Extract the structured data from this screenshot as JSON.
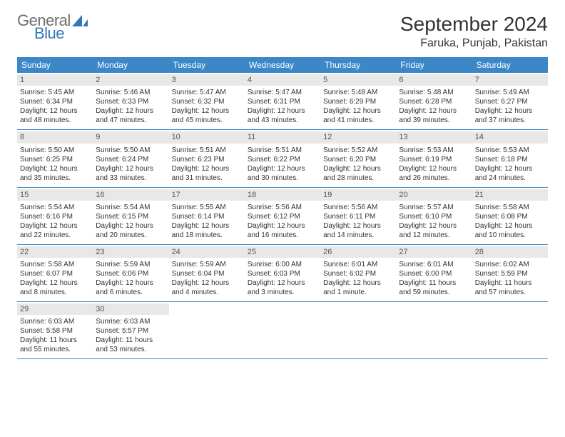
{
  "brand": {
    "word1": "General",
    "word2": "Blue",
    "color_gray": "#6d6d6d",
    "color_blue": "#2f79b9"
  },
  "header": {
    "title": "September 2024",
    "location": "Faruka, Punjab, Pakistan"
  },
  "colors": {
    "header_bar": "#3b87c8",
    "daynum_bg": "#e8e8e8",
    "border": "#3b87c8"
  },
  "weekdays": [
    "Sunday",
    "Monday",
    "Tuesday",
    "Wednesday",
    "Thursday",
    "Friday",
    "Saturday"
  ],
  "weeks": [
    [
      {
        "n": "1",
        "sr": "Sunrise: 5:45 AM",
        "ss": "Sunset: 6:34 PM",
        "d1": "Daylight: 12 hours",
        "d2": "and 48 minutes."
      },
      {
        "n": "2",
        "sr": "Sunrise: 5:46 AM",
        "ss": "Sunset: 6:33 PM",
        "d1": "Daylight: 12 hours",
        "d2": "and 47 minutes."
      },
      {
        "n": "3",
        "sr": "Sunrise: 5:47 AM",
        "ss": "Sunset: 6:32 PM",
        "d1": "Daylight: 12 hours",
        "d2": "and 45 minutes."
      },
      {
        "n": "4",
        "sr": "Sunrise: 5:47 AM",
        "ss": "Sunset: 6:31 PM",
        "d1": "Daylight: 12 hours",
        "d2": "and 43 minutes."
      },
      {
        "n": "5",
        "sr": "Sunrise: 5:48 AM",
        "ss": "Sunset: 6:29 PM",
        "d1": "Daylight: 12 hours",
        "d2": "and 41 minutes."
      },
      {
        "n": "6",
        "sr": "Sunrise: 5:48 AM",
        "ss": "Sunset: 6:28 PM",
        "d1": "Daylight: 12 hours",
        "d2": "and 39 minutes."
      },
      {
        "n": "7",
        "sr": "Sunrise: 5:49 AM",
        "ss": "Sunset: 6:27 PM",
        "d1": "Daylight: 12 hours",
        "d2": "and 37 minutes."
      }
    ],
    [
      {
        "n": "8",
        "sr": "Sunrise: 5:50 AM",
        "ss": "Sunset: 6:25 PM",
        "d1": "Daylight: 12 hours",
        "d2": "and 35 minutes."
      },
      {
        "n": "9",
        "sr": "Sunrise: 5:50 AM",
        "ss": "Sunset: 6:24 PM",
        "d1": "Daylight: 12 hours",
        "d2": "and 33 minutes."
      },
      {
        "n": "10",
        "sr": "Sunrise: 5:51 AM",
        "ss": "Sunset: 6:23 PM",
        "d1": "Daylight: 12 hours",
        "d2": "and 31 minutes."
      },
      {
        "n": "11",
        "sr": "Sunrise: 5:51 AM",
        "ss": "Sunset: 6:22 PM",
        "d1": "Daylight: 12 hours",
        "d2": "and 30 minutes."
      },
      {
        "n": "12",
        "sr": "Sunrise: 5:52 AM",
        "ss": "Sunset: 6:20 PM",
        "d1": "Daylight: 12 hours",
        "d2": "and 28 minutes."
      },
      {
        "n": "13",
        "sr": "Sunrise: 5:53 AM",
        "ss": "Sunset: 6:19 PM",
        "d1": "Daylight: 12 hours",
        "d2": "and 26 minutes."
      },
      {
        "n": "14",
        "sr": "Sunrise: 5:53 AM",
        "ss": "Sunset: 6:18 PM",
        "d1": "Daylight: 12 hours",
        "d2": "and 24 minutes."
      }
    ],
    [
      {
        "n": "15",
        "sr": "Sunrise: 5:54 AM",
        "ss": "Sunset: 6:16 PM",
        "d1": "Daylight: 12 hours",
        "d2": "and 22 minutes."
      },
      {
        "n": "16",
        "sr": "Sunrise: 5:54 AM",
        "ss": "Sunset: 6:15 PM",
        "d1": "Daylight: 12 hours",
        "d2": "and 20 minutes."
      },
      {
        "n": "17",
        "sr": "Sunrise: 5:55 AM",
        "ss": "Sunset: 6:14 PM",
        "d1": "Daylight: 12 hours",
        "d2": "and 18 minutes."
      },
      {
        "n": "18",
        "sr": "Sunrise: 5:56 AM",
        "ss": "Sunset: 6:12 PM",
        "d1": "Daylight: 12 hours",
        "d2": "and 16 minutes."
      },
      {
        "n": "19",
        "sr": "Sunrise: 5:56 AM",
        "ss": "Sunset: 6:11 PM",
        "d1": "Daylight: 12 hours",
        "d2": "and 14 minutes."
      },
      {
        "n": "20",
        "sr": "Sunrise: 5:57 AM",
        "ss": "Sunset: 6:10 PM",
        "d1": "Daylight: 12 hours",
        "d2": "and 12 minutes."
      },
      {
        "n": "21",
        "sr": "Sunrise: 5:58 AM",
        "ss": "Sunset: 6:08 PM",
        "d1": "Daylight: 12 hours",
        "d2": "and 10 minutes."
      }
    ],
    [
      {
        "n": "22",
        "sr": "Sunrise: 5:58 AM",
        "ss": "Sunset: 6:07 PM",
        "d1": "Daylight: 12 hours",
        "d2": "and 8 minutes."
      },
      {
        "n": "23",
        "sr": "Sunrise: 5:59 AM",
        "ss": "Sunset: 6:06 PM",
        "d1": "Daylight: 12 hours",
        "d2": "and 6 minutes."
      },
      {
        "n": "24",
        "sr": "Sunrise: 5:59 AM",
        "ss": "Sunset: 6:04 PM",
        "d1": "Daylight: 12 hours",
        "d2": "and 4 minutes."
      },
      {
        "n": "25",
        "sr": "Sunrise: 6:00 AM",
        "ss": "Sunset: 6:03 PM",
        "d1": "Daylight: 12 hours",
        "d2": "and 3 minutes."
      },
      {
        "n": "26",
        "sr": "Sunrise: 6:01 AM",
        "ss": "Sunset: 6:02 PM",
        "d1": "Daylight: 12 hours",
        "d2": "and 1 minute."
      },
      {
        "n": "27",
        "sr": "Sunrise: 6:01 AM",
        "ss": "Sunset: 6:00 PM",
        "d1": "Daylight: 11 hours",
        "d2": "and 59 minutes."
      },
      {
        "n": "28",
        "sr": "Sunrise: 6:02 AM",
        "ss": "Sunset: 5:59 PM",
        "d1": "Daylight: 11 hours",
        "d2": "and 57 minutes."
      }
    ],
    [
      {
        "n": "29",
        "sr": "Sunrise: 6:03 AM",
        "ss": "Sunset: 5:58 PM",
        "d1": "Daylight: 11 hours",
        "d2": "and 55 minutes."
      },
      {
        "n": "30",
        "sr": "Sunrise: 6:03 AM",
        "ss": "Sunset: 5:57 PM",
        "d1": "Daylight: 11 hours",
        "d2": "and 53 minutes."
      },
      null,
      null,
      null,
      null,
      null
    ]
  ]
}
